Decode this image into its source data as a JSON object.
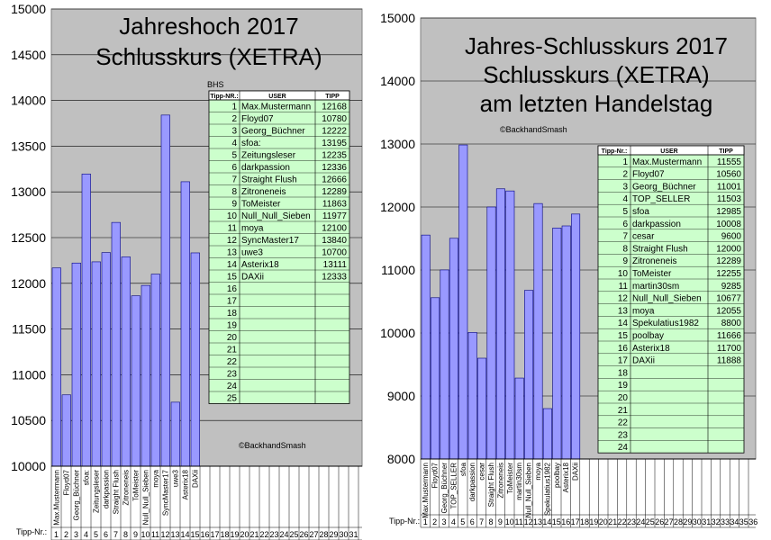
{
  "colors": {
    "plot_bg": "#c0c0c0",
    "bar": "#9999ff",
    "bar_edge": "#000080",
    "table_fill": "#ccffcc",
    "grid": "#000000"
  },
  "chart_data": [
    {
      "type": "bar",
      "title": [
        "Jahreshoch 2017",
        "Schlusskurs (XETRA)"
      ],
      "watermark_small": "BHS",
      "credit": "©BackhandSmash",
      "ylim": [
        10000,
        15000
      ],
      "yticks": [
        10000,
        10500,
        11000,
        11500,
        12000,
        12500,
        13000,
        13500,
        14000,
        14500,
        15000
      ],
      "tipp_label": "Tipp-Nr.:",
      "slots": 33,
      "categories": [
        "Max.Mustermann",
        "Floyd07",
        "Georg_Büchner",
        "sfoa:",
        "Zeitungsleser",
        "darkpassion",
        "Straight Flush",
        "Zitroneneis",
        "ToMeister",
        "Null_Null_Sieben",
        "moya",
        "SyncMaster17",
        "uwe3",
        "Asterix18",
        "DAXii"
      ],
      "values": [
        12168,
        10780,
        12222,
        13195,
        12235,
        12336,
        12666,
        12289,
        11863,
        11977,
        12100,
        13840,
        10700,
        13111,
        12333
      ],
      "table": {
        "headers": [
          "Tipp-NR.:",
          "USER",
          "TIPP"
        ],
        "rows": 25
      }
    },
    {
      "type": "bar",
      "title": [
        "Jahres-Schlusskurs 2017",
        "Schlusskurs (XETRA)",
        "am letzten Handelstag"
      ],
      "credit": "©BackhandSmash",
      "ylim": [
        8000,
        15000
      ],
      "yticks": [
        8000,
        9000,
        10000,
        11000,
        12000,
        13000,
        14000,
        15000
      ],
      "tipp_label": "Tipp-Nr.:",
      "slots": 36,
      "categories": [
        "Max.Mustermann",
        "Floyd07",
        "Georg_Büchner",
        "TOP_SELLER",
        "sfoa",
        "darkpassion",
        "cesar",
        "Straight Flush",
        "Zitroneneis",
        "ToMeister",
        "martin30sm",
        "Null_Null_Sieben",
        "moya",
        "Spekulatius1982",
        "poolbay",
        "Asterix18",
        "DAXii"
      ],
      "values": [
        11555,
        10560,
        11001,
        11503,
        12985,
        10008,
        9600,
        12000,
        12289,
        12255,
        9285,
        10677,
        12055,
        8800,
        11666,
        11700,
        11888
      ],
      "table": {
        "headers": [
          "Tipp-Nr.:",
          "USER",
          "TIPP"
        ],
        "rows": 24
      }
    }
  ]
}
